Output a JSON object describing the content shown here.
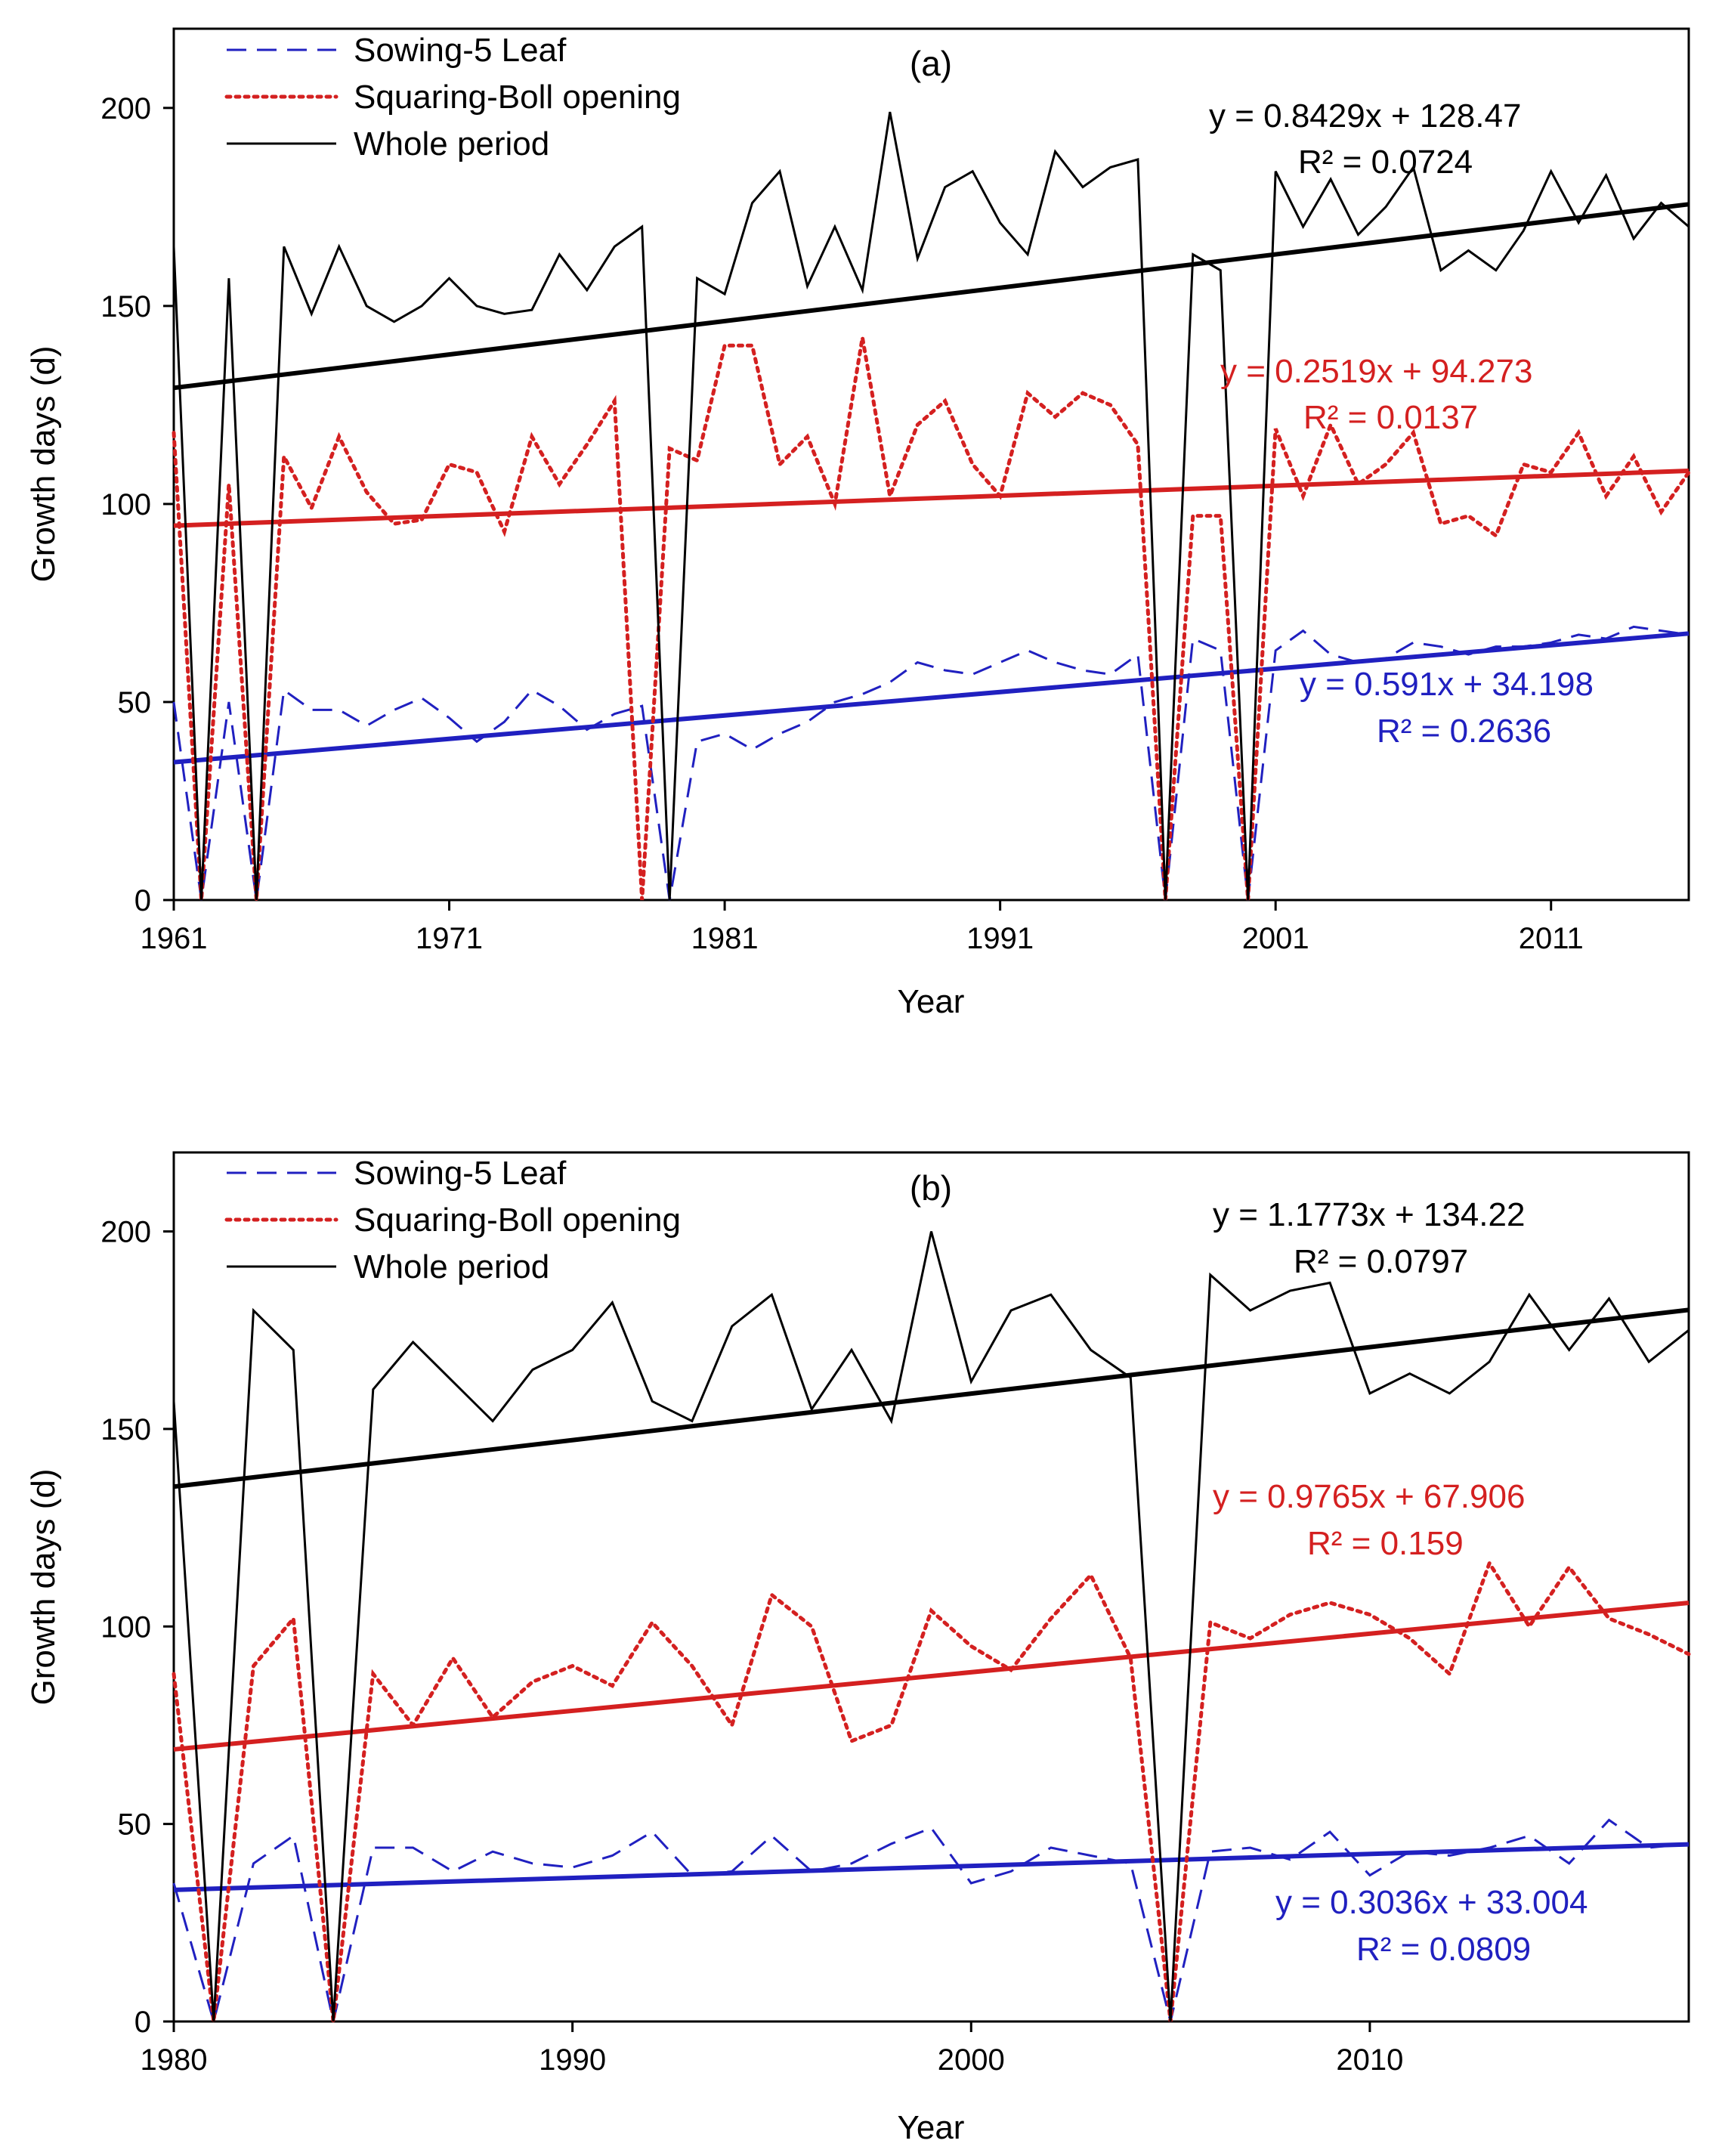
{
  "chart_data": [
    {
      "type": "line",
      "panel_label": "(a)",
      "xlabel": "Year",
      "ylabel": "Growth days (d)",
      "xlim": [
        1961,
        2016
      ],
      "ylim": [
        0,
        220
      ],
      "xticks": [
        1961,
        1971,
        1981,
        1991,
        2001,
        2011
      ],
      "yticks": [
        0,
        50,
        100,
        150,
        200
      ],
      "legend_position": "top-left",
      "x": [
        1961,
        1962,
        1963,
        1964,
        1965,
        1966,
        1967,
        1968,
        1969,
        1970,
        1971,
        1972,
        1973,
        1974,
        1975,
        1976,
        1977,
        1978,
        1979,
        1980,
        1981,
        1982,
        1983,
        1984,
        1985,
        1986,
        1987,
        1988,
        1989,
        1990,
        1991,
        1992,
        1993,
        1994,
        1995,
        1996,
        1997,
        1998,
        1999,
        2000,
        2001,
        2002,
        2003,
        2004,
        2005,
        2006,
        2007,
        2008,
        2009,
        2010,
        2011,
        2012,
        2013,
        2014,
        2015,
        2016
      ],
      "series": [
        {
          "name": "Sowing-5 Leaf",
          "color": "#2020c0",
          "style": "dashed",
          "values": [
            50,
            0,
            50,
            0,
            53,
            48,
            48,
            44,
            48,
            51,
            46,
            40,
            45,
            53,
            49,
            43,
            47,
            49,
            0,
            40,
            42,
            38,
            42,
            45,
            50,
            52,
            55,
            60,
            58,
            57,
            60,
            63,
            60,
            58,
            57,
            62,
            0,
            66,
            63,
            0,
            63,
            68,
            62,
            60,
            61,
            65,
            64,
            62,
            64,
            64,
            65,
            67,
            66,
            69,
            68,
            67
          ],
          "trend": {
            "slope": 0.591,
            "intercept": 34.198
          },
          "equation": "y = 0.591x + 34.198",
          "r2": "R² = 0.2636"
        },
        {
          "name": "Squaring-Boll opening",
          "color": "#d42020",
          "style": "dotted",
          "values": [
            118,
            0,
            105,
            0,
            112,
            99,
            117,
            103,
            95,
            96,
            110,
            108,
            93,
            117,
            105,
            115,
            126,
            0,
            114,
            111,
            140,
            140,
            110,
            117,
            100,
            142,
            102,
            120,
            126,
            110,
            102,
            128,
            122,
            128,
            125,
            115,
            0,
            97,
            97,
            0,
            119,
            102,
            120,
            105,
            110,
            118,
            95,
            97,
            92,
            110,
            108,
            118,
            102,
            112,
            98,
            108
          ],
          "trend": {
            "slope": 0.2519,
            "intercept": 94.273
          },
          "equation": "y = 0.2519x + 94.273",
          "r2": "R² = 0.0137"
        },
        {
          "name": "Whole period",
          "color": "#000000",
          "style": "solid",
          "values": [
            165,
            0,
            157,
            0,
            165,
            148,
            165,
            150,
            146,
            150,
            157,
            150,
            148,
            149,
            163,
            154,
            165,
            170,
            0,
            157,
            153,
            176,
            184,
            155,
            170,
            154,
            199,
            162,
            180,
            184,
            171,
            163,
            189,
            180,
            185,
            187,
            0,
            163,
            159,
            0,
            184,
            170,
            182,
            168,
            175,
            185,
            159,
            164,
            159,
            169,
            184,
            171,
            183,
            167,
            176,
            170
          ],
          "trend": {
            "slope": 0.8429,
            "intercept": 128.47
          },
          "equation": "y = 0.8429x + 128.47",
          "r2": "R² = 0.0724"
        }
      ]
    },
    {
      "type": "line",
      "panel_label": "(b)",
      "xlabel": "Year",
      "ylabel": "Growth days (d)",
      "xlim": [
        1980,
        2018
      ],
      "ylim": [
        0,
        220
      ],
      "xticks": [
        1980,
        1990,
        2000,
        2010
      ],
      "yticks": [
        0,
        50,
        100,
        150,
        200
      ],
      "legend_position": "top-left",
      "x": [
        1980,
        1981,
        1982,
        1983,
        1984,
        1985,
        1986,
        1987,
        1988,
        1989,
        1990,
        1991,
        1992,
        1993,
        1994,
        1995,
        1996,
        1997,
        1998,
        1999,
        2000,
        2001,
        2002,
        2003,
        2004,
        2005,
        2006,
        2007,
        2008,
        2009,
        2010,
        2011,
        2012,
        2013,
        2014,
        2015,
        2016,
        2017,
        2018
      ],
      "series": [
        {
          "name": "Sowing-5 Leaf",
          "color": "#2020c0",
          "style": "dashed",
          "values": [
            35,
            0,
            40,
            47,
            0,
            44,
            44,
            38,
            43,
            40,
            39,
            42,
            48,
            37,
            38,
            47,
            38,
            40,
            45,
            49,
            35,
            38,
            44,
            42,
            40,
            0,
            43,
            44,
            41,
            48,
            37,
            43,
            42,
            44,
            47,
            40,
            51,
            44,
            45
          ],
          "trend": {
            "slope": 0.3036,
            "intercept": 33.004
          },
          "equation": "y = 0.3036x + 33.004",
          "r2": "R² = 0.0809"
        },
        {
          "name": "Squaring-Boll opening",
          "color": "#d42020",
          "style": "dotted",
          "values": [
            88,
            0,
            90,
            102,
            0,
            88,
            75,
            92,
            77,
            86,
            90,
            85,
            101,
            90,
            75,
            108,
            100,
            71,
            75,
            104,
            95,
            89,
            102,
            113,
            92,
            0,
            101,
            97,
            103,
            106,
            103,
            97,
            88,
            116,
            100,
            115,
            102,
            98,
            93
          ],
          "trend": {
            "slope": 0.9765,
            "intercept": 67.906
          },
          "equation": "y = 0.9765x + 67.906",
          "r2": "R² = 0.159"
        },
        {
          "name": "Whole period",
          "color": "#000000",
          "style": "solid",
          "values": [
            157,
            0,
            180,
            170,
            0,
            160,
            172,
            162,
            152,
            165,
            170,
            182,
            157,
            152,
            176,
            184,
            155,
            170,
            152,
            200,
            162,
            180,
            184,
            170,
            163,
            0,
            189,
            180,
            185,
            187,
            159,
            164,
            159,
            167,
            184,
            170,
            183,
            167,
            175
          ],
          "trend": {
            "slope": 1.1773,
            "intercept": 134.22
          },
          "equation": "y = 1.1773x + 134.22",
          "r2": "R² = 0.0797"
        }
      ]
    }
  ]
}
